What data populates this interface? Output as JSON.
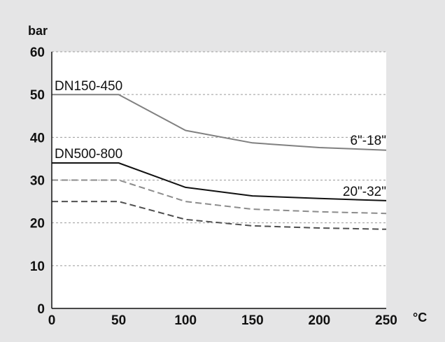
{
  "chart_data": {
    "type": "line",
    "ylabel": "bar",
    "xlabel": "°C",
    "xlim": [
      0,
      250
    ],
    "ylim": [
      0,
      60
    ],
    "x_ticks": [
      0,
      50,
      100,
      150,
      200,
      250
    ],
    "y_ticks": [
      0,
      10,
      20,
      30,
      40,
      50,
      60
    ],
    "grid": "horizontal dashed",
    "annotations": [
      {
        "text": "DN150-450"
      },
      {
        "text": "6\"-18\""
      },
      {
        "text": "DN500-800"
      },
      {
        "text": "20\"-32\""
      }
    ],
    "series": [
      {
        "color": "#808080",
        "dash": "solid",
        "points": [
          [
            0,
            50
          ],
          [
            50,
            50
          ],
          [
            100,
            41.6
          ],
          [
            150,
            38.7
          ],
          [
            200,
            37.6
          ],
          [
            250,
            37.0
          ]
        ]
      },
      {
        "color": "#111111",
        "dash": "solid",
        "points": [
          [
            0,
            34
          ],
          [
            50,
            34
          ],
          [
            100,
            28.3
          ],
          [
            150,
            26.3
          ],
          [
            200,
            25.7
          ],
          [
            250,
            25.2
          ]
        ]
      },
      {
        "color": "#8c8c8c",
        "dash": "dashed",
        "points": [
          [
            0,
            30
          ],
          [
            50,
            30
          ],
          [
            100,
            25.0
          ],
          [
            150,
            23.2
          ],
          [
            200,
            22.6
          ],
          [
            250,
            22.2
          ]
        ]
      },
      {
        "color": "#505050",
        "dash": "dashed",
        "points": [
          [
            0,
            25
          ],
          [
            50,
            25
          ],
          [
            100,
            20.8
          ],
          [
            150,
            19.3
          ],
          [
            200,
            18.8
          ],
          [
            250,
            18.5
          ]
        ]
      }
    ]
  }
}
